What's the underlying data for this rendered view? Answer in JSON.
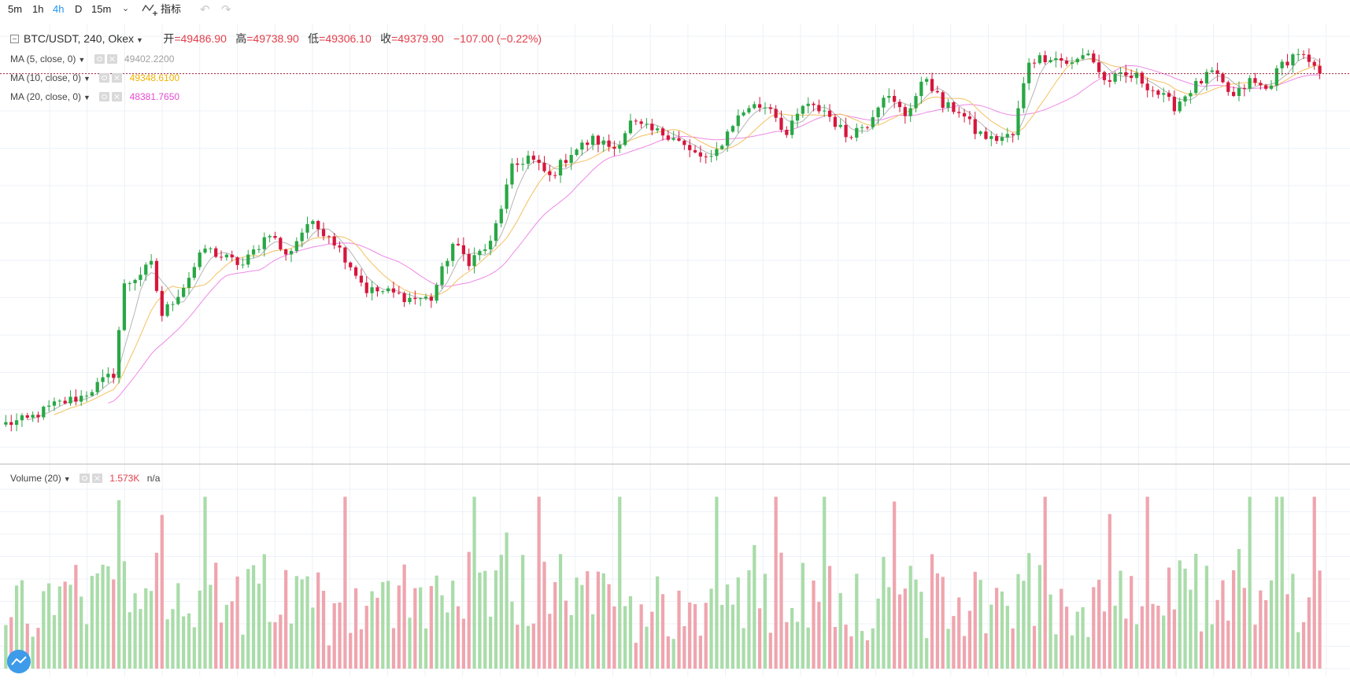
{
  "toolbar": {
    "intervals": [
      "5m",
      "1h",
      "4h",
      "D",
      "15m"
    ],
    "active_interval": "4h",
    "indicators_label": "指标",
    "icons": [
      "chevron-down-icon",
      "indicators-icon",
      "undo-icon",
      "redo-icon"
    ]
  },
  "legend": {
    "symbol_title": "BTC/USDT, 240, Okex",
    "ohlc": {
      "open_label": "开",
      "open": "=49486.90",
      "high_label": "高",
      "high": "=49738.90",
      "low_label": "低",
      "low": "=49306.10",
      "close_label": "收",
      "close": "=49379.90",
      "change": "−107.00 (−0.22%)"
    },
    "ma": [
      {
        "label": "MA (5, close, 0)",
        "value": "49402.2200",
        "color": "#a0a0a0"
      },
      {
        "label": "MA (10, close, 0)",
        "value": "49348.6100",
        "color": "#f0b400"
      },
      {
        "label": "MA (20, close, 0)",
        "value": "48381.7650",
        "color": "#e64ad1"
      }
    ],
    "volume": {
      "label": "Volume (20)",
      "value": "1.573K",
      "extra": "n/a"
    }
  },
  "colors": {
    "up": "#28a745",
    "down": "#d6163c",
    "vol_up": "#a9dca9",
    "vol_down": "#efa5ae",
    "ma5": "#b5b5b5",
    "ma10": "#f5c060",
    "ma20": "#ee88e6",
    "grid": "#edf1f6",
    "separator": "#cfcfcf",
    "last_price_line": "#a8273a"
  },
  "chart_data": {
    "type": "candlestick",
    "symbol": "BTC/USDT",
    "interval": "240",
    "exchange": "Okex",
    "price_range": [
      40600,
      50200
    ],
    "last_close": 49379.9,
    "path_points": [
      [
        0,
        41000
      ],
      [
        4,
        41100
      ],
      [
        9,
        41450
      ],
      [
        14,
        41650
      ],
      [
        20,
        42200
      ],
      [
        22,
        44300
      ],
      [
        27,
        44800
      ],
      [
        29,
        43600
      ],
      [
        33,
        44300
      ],
      [
        37,
        45200
      ],
      [
        40,
        45000
      ],
      [
        44,
        44800
      ],
      [
        49,
        45600
      ],
      [
        52,
        45000
      ],
      [
        56,
        45800
      ],
      [
        60,
        45550
      ],
      [
        64,
        44800
      ],
      [
        67,
        44200
      ],
      [
        71,
        44150
      ],
      [
        75,
        44000
      ],
      [
        79,
        44000
      ],
      [
        83,
        45300
      ],
      [
        86,
        44900
      ],
      [
        90,
        45300
      ],
      [
        94,
        47100
      ],
      [
        97,
        47400
      ],
      [
        101,
        46900
      ],
      [
        105,
        47500
      ],
      [
        109,
        47800
      ],
      [
        113,
        47600
      ],
      [
        116,
        48200
      ],
      [
        120,
        48000
      ],
      [
        124,
        47900
      ],
      [
        127,
        47500
      ],
      [
        131,
        47300
      ],
      [
        135,
        48200
      ],
      [
        138,
        48600
      ],
      [
        142,
        48600
      ],
      [
        145,
        47900
      ],
      [
        148,
        48600
      ],
      [
        152,
        48500
      ],
      [
        156,
        47900
      ],
      [
        160,
        48200
      ],
      [
        163,
        48900
      ],
      [
        167,
        48400
      ],
      [
        171,
        49300
      ],
      [
        174,
        48600
      ],
      [
        177,
        48500
      ],
      [
        180,
        48000
      ],
      [
        183,
        47800
      ],
      [
        187,
        47900
      ],
      [
        190,
        49700
      ],
      [
        194,
        49800
      ],
      [
        198,
        49600
      ],
      [
        201,
        49900
      ],
      [
        204,
        49200
      ],
      [
        207,
        49300
      ],
      [
        210,
        49300
      ],
      [
        214,
        48900
      ],
      [
        217,
        48600
      ],
      [
        220,
        49000
      ],
      [
        224,
        49400
      ],
      [
        228,
        48800
      ],
      [
        231,
        49200
      ],
      [
        234,
        49000
      ],
      [
        237,
        49600
      ],
      [
        240,
        49900
      ],
      [
        244,
        49300
      ]
    ],
    "volume_range": [
      0,
      4800
    ],
    "volume_seed": 12345
  }
}
